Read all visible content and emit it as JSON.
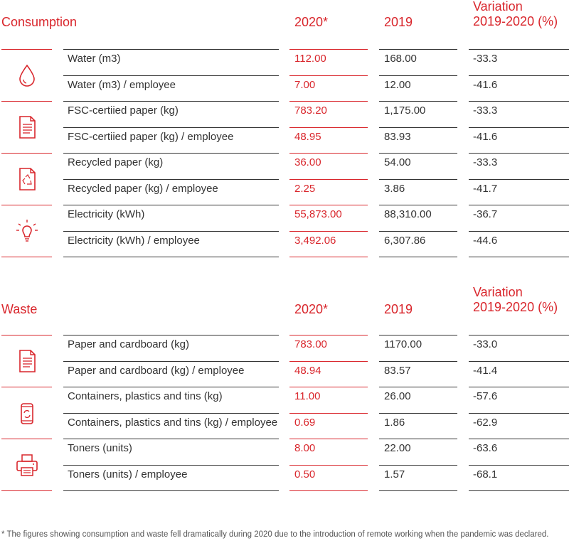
{
  "consumption": {
    "title": "Consumption",
    "col_2020": "2020*",
    "col_2019": "2019",
    "col_var_1": "Variation",
    "col_var_2": "2019-2020 (%)",
    "groups": [
      {
        "icon": "water-drop-icon",
        "rows": [
          {
            "label": "Water (m3)",
            "v2020": "112.00",
            "v2019": "168.00",
            "var": "-33.3"
          },
          {
            "label": "Water (m3) / employee",
            "v2020": "7.00",
            "v2019": "12.00",
            "var": "-41.6"
          }
        ]
      },
      {
        "icon": "document-icon",
        "rows": [
          {
            "label": "FSC-certiied paper (kg)",
            "v2020": "783.20",
            "v2019": "1,175.00",
            "var": "-33.3"
          },
          {
            "label": "FSC-certiied paper (kg) / employee",
            "v2020": "48.95",
            "v2019": "83.93",
            "var": "-41.6"
          }
        ]
      },
      {
        "icon": "recycled-paper-icon",
        "rows": [
          {
            "label": "Recycled paper (kg)",
            "v2020": "36.00",
            "v2019": "54.00",
            "var": "-33.3"
          },
          {
            "label": "Recycled paper (kg) / employee",
            "v2020": "2.25",
            "v2019": "3.86",
            "var": "-41.7"
          }
        ]
      },
      {
        "icon": "light-bulb-icon",
        "rows": [
          {
            "label": "Electricity (kWh)",
            "v2020": "55,873.00",
            "v2019": "88,310.00",
            "var": "-36.7"
          },
          {
            "label": "Electricity (kWh) / employee",
            "v2020": "3,492.06",
            "v2019": "6,307.86",
            "var": "-44.6"
          }
        ]
      }
    ]
  },
  "waste": {
    "title": "Waste",
    "col_2020": "2020*",
    "col_2019": "2019",
    "col_var_1": "Variation",
    "col_var_2": "2019-2020 (%)",
    "groups": [
      {
        "icon": "document-icon",
        "rows": [
          {
            "label": "Paper and cardboard (kg)",
            "v2020": "783.00",
            "v2019": "1170.00",
            "var": "-33.0"
          },
          {
            "label": "Paper and cardboard (kg) / employee",
            "v2020": "48.94",
            "v2019": "83.57",
            "var": "-41.4"
          }
        ]
      },
      {
        "icon": "recycle-can-icon",
        "rows": [
          {
            "label": "Containers, plastics and tins (kg)",
            "v2020": "11.00",
            "v2019": "26.00",
            "var": "-57.6"
          },
          {
            "label": "Containers, plastics and tins (kg) / employee",
            "v2020": "0.69",
            "v2019": "1.86",
            "var": "-62.9"
          }
        ]
      },
      {
        "icon": "printer-icon",
        "rows": [
          {
            "label": "Toners (units)",
            "v2020": "8.00",
            "v2019": "22.00",
            "var": "-63.6"
          },
          {
            "label": "Toners (units) / employee",
            "v2020": "0.50",
            "v2019": "1.57",
            "var": "-68.1"
          }
        ]
      }
    ]
  },
  "footnote": "* The figures showing consumption and waste fell dramatically during 2020 due to the introduction of remote working when the pandemic was declared.",
  "colors": {
    "accent": "#d9262c",
    "text": "#333333"
  }
}
